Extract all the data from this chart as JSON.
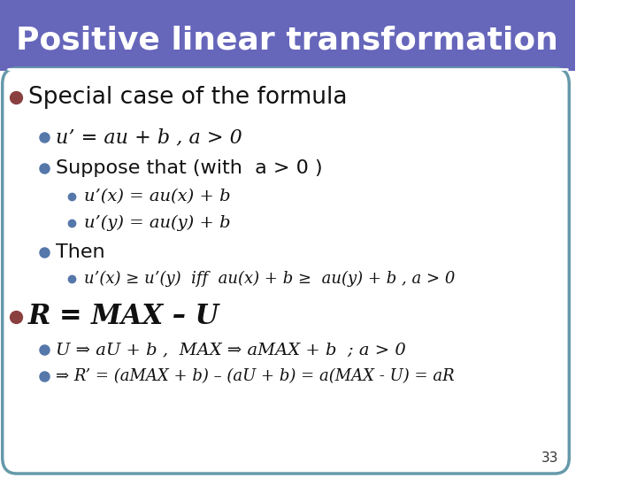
{
  "title": "Positive linear transformation",
  "title_bg_color": "#6666bb",
  "title_text_color": "#ffffff",
  "slide_bg_color": "#ffffff",
  "border_color": "#6699aa",
  "bullet_color_dark": "#8B4040",
  "bullet_color_blue": "#5577aa",
  "page_number": "33",
  "lines": [
    {
      "level": 0,
      "text": "Special case of the formula",
      "style": "normal",
      "size": 22
    },
    {
      "level": 1,
      "text": "u’ = au + b , a > 0",
      "style": "mixed",
      "size": 19
    },
    {
      "level": 1,
      "text": "Suppose that (with  a > 0 )",
      "style": "normal",
      "size": 19
    },
    {
      "level": 2,
      "text": "u’(x) = au(x) + b",
      "style": "italic_mixed",
      "size": 17
    },
    {
      "level": 2,
      "text": "u’(y) = au(y) + b",
      "style": "italic_mixed",
      "size": 17
    },
    {
      "level": 1,
      "text": "Then",
      "style": "normal",
      "size": 19
    },
    {
      "level": 2,
      "text": "u’(x) ≥ u’(y)  iff  au(x) + b ≥  au(y) + b , a > 0",
      "style": "italic_mixed",
      "size": 17
    },
    {
      "level": 0,
      "text": "R = MAX – U",
      "style": "large_italic",
      "size": 26
    },
    {
      "level": 1,
      "text": "U ⇒ aU + b ,  MAX ⇒ aMAX + b  ; a > 0",
      "style": "italic_mixed",
      "size": 19
    },
    {
      "level": 1,
      "text": "⇒ R’ = (aMAX + b) – (aU + b) = a(MAX - U) = aR",
      "style": "italic_mixed",
      "size": 19
    }
  ]
}
